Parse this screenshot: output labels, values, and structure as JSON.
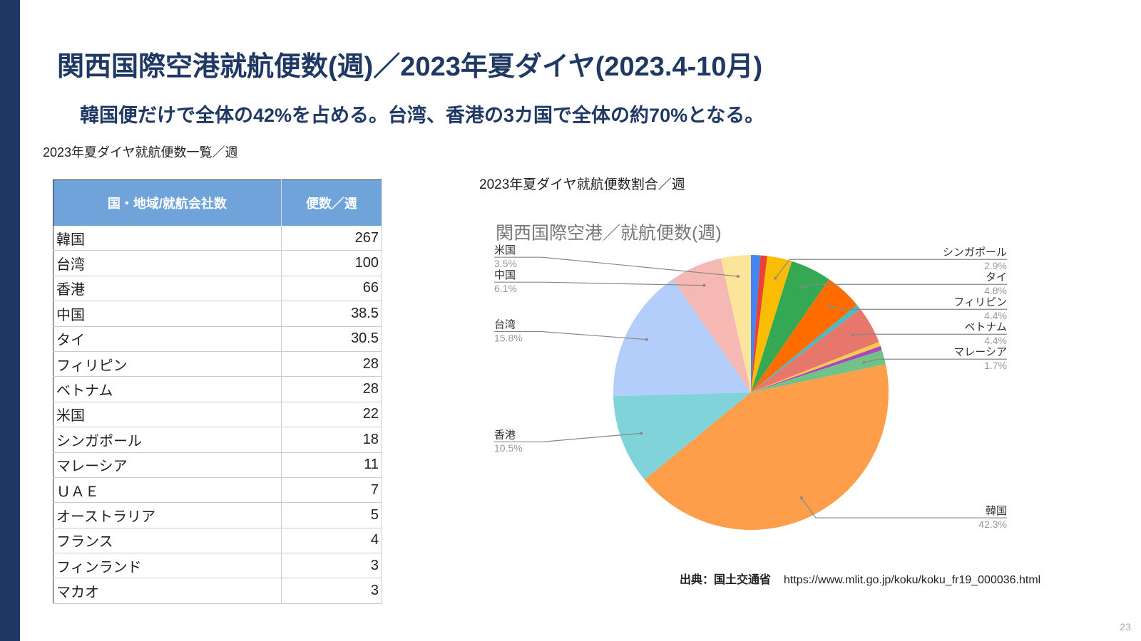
{
  "header": {
    "title": "関西国際空港就航便数(週)／2023年夏ダイヤ(2023.4-10月)",
    "subtitle": "韓国便だけで全体の42%を占める。台湾、香港の3カ国で全体の約70%となる。"
  },
  "table": {
    "caption": "2023年夏ダイヤ就航便数一覧／週",
    "columns": [
      "国・地域/就航会社数",
      "便数／週"
    ],
    "rows": [
      [
        "韓国",
        267
      ],
      [
        "台湾",
        100
      ],
      [
        "香港",
        66
      ],
      [
        "中国",
        38.5
      ],
      [
        "タイ",
        30.5
      ],
      [
        "フィリピン",
        28
      ],
      [
        "ベトナム",
        28
      ],
      [
        "米国",
        22
      ],
      [
        "シンガポール",
        18
      ],
      [
        "マレーシア",
        11
      ],
      [
        "ＵＡＥ",
        7
      ],
      [
        "オーストラリア",
        5
      ],
      [
        "フランス",
        4
      ],
      [
        "フィンランド",
        3
      ],
      [
        "マカオ",
        3
      ]
    ]
  },
  "chart_heading": "2023年夏ダイヤ就航便数割合／週",
  "chart_data": {
    "type": "pie",
    "title": "関西国際空港／就航便数(週)",
    "categories": [
      null,
      null,
      "シンガポール",
      "タイ",
      "フィリピン",
      null,
      "ベトナム",
      null,
      null,
      "マレーシア",
      "韓国",
      "香港",
      "台湾",
      "中国",
      "米国"
    ],
    "values": [
      1.1,
      0.8,
      2.9,
      4.8,
      4.4,
      0.6,
      4.4,
      0.5,
      0.5,
      1.7,
      42.3,
      10.5,
      15.8,
      6.1,
      3.5
    ],
    "value_labels": [
      null,
      null,
      "2.9%",
      "4.8%",
      "4.4%",
      null,
      "4.4%",
      null,
      null,
      "1.7%",
      "42.3%",
      "10.5%",
      "15.8%",
      "6.1%",
      "3.5%"
    ],
    "colors": [
      "#4285f4",
      "#ea4335",
      "#fbbc04",
      "#34a853",
      "#ff6d01",
      "#46bdc6",
      "#e8776b",
      "#f7cb4d",
      "#ab47bc",
      "#71c287",
      "#ff9e4a",
      "#7fd3d9",
      "#b3cefb",
      "#f5b8b3",
      "#fde49b"
    ]
  },
  "source": {
    "label": "出典：国土交通省",
    "url": "https://www.mlit.go.jp/koku/koku_fr19_000036.html"
  },
  "page_number": "23"
}
